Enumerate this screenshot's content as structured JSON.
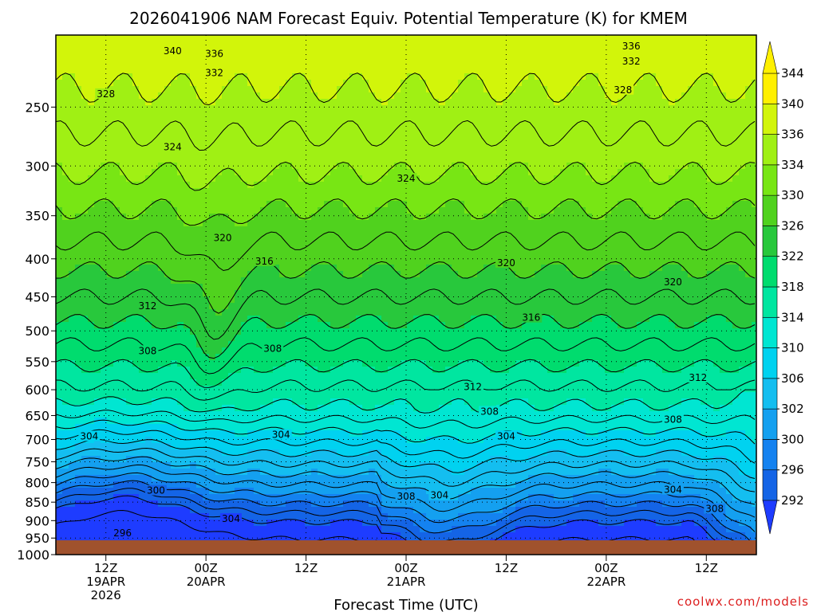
{
  "title": "2026041906 NAM Forecast Equiv. Potential Temperature (K) for KMEM",
  "credit": "coolwx.com/models",
  "chart_data": {
    "type": "heatmap",
    "title": "2026041906 NAM Forecast Equiv. Potential Temperature (K) for KMEM",
    "xlabel": "Forecast Time (UTC)",
    "ylabel": "",
    "yaxis": {
      "scale": "log",
      "direction": "pressure decreasing upward",
      "range": [
        1000,
        200
      ],
      "ticks": [
        250,
        300,
        350,
        400,
        450,
        500,
        550,
        600,
        650,
        700,
        750,
        800,
        850,
        900,
        950,
        1000
      ]
    },
    "xaxis": {
      "range_hours": [
        6,
        90
      ],
      "ticks": [
        {
          "hour": 12,
          "label": [
            "12Z",
            "19APR",
            "2026"
          ]
        },
        {
          "hour": 24,
          "label": [
            "00Z",
            "20APR"
          ]
        },
        {
          "hour": 36,
          "label": [
            "12Z"
          ]
        },
        {
          "hour": 48,
          "label": [
            "00Z",
            "21APR"
          ]
        },
        {
          "hour": 60,
          "label": [
            "12Z"
          ]
        },
        {
          "hour": 72,
          "label": [
            "00Z",
            "22APR"
          ]
        },
        {
          "hour": 84,
          "label": [
            "12Z"
          ]
        }
      ]
    },
    "grid": true,
    "colorbar": {
      "levels": [
        292,
        296,
        300,
        302,
        306,
        310,
        314,
        318,
        322,
        326,
        330,
        334,
        336,
        340,
        344
      ],
      "colors": [
        "#1e3cff",
        "#1464e6",
        "#1482f0",
        "#14a0f0",
        "#14bef0",
        "#00d2f0",
        "#00e6d2",
        "#00e6a0",
        "#00dc6e",
        "#28c83c",
        "#50d21e",
        "#78e614",
        "#a0f014",
        "#d2f50a",
        "#fff000"
      ],
      "range": [
        290,
        346
      ],
      "position": "right"
    },
    "contour_labels": [
      {
        "value": 340,
        "hour": 20,
        "p": 210
      },
      {
        "value": 336,
        "hour": 25,
        "p": 212
      },
      {
        "value": 336,
        "hour": 75,
        "p": 207
      },
      {
        "value": 332,
        "hour": 25,
        "p": 225
      },
      {
        "value": 332,
        "hour": 75,
        "p": 217
      },
      {
        "value": 328,
        "hour": 12,
        "p": 240
      },
      {
        "value": 328,
        "hour": 74,
        "p": 237
      },
      {
        "value": 324,
        "hour": 20,
        "p": 283
      },
      {
        "value": 324,
        "hour": 48,
        "p": 312
      },
      {
        "value": 320,
        "hour": 26,
        "p": 375
      },
      {
        "value": 320,
        "hour": 60,
        "p": 405
      },
      {
        "value": 320,
        "hour": 80,
        "p": 430
      },
      {
        "value": 316,
        "hour": 31,
        "p": 403
      },
      {
        "value": 316,
        "hour": 63,
        "p": 480
      },
      {
        "value": 312,
        "hour": 17,
        "p": 463
      },
      {
        "value": 312,
        "hour": 56,
        "p": 595
      },
      {
        "value": 312,
        "hour": 83,
        "p": 578
      },
      {
        "value": 308,
        "hour": 17,
        "p": 532
      },
      {
        "value": 308,
        "hour": 32,
        "p": 528
      },
      {
        "value": 308,
        "hour": 58,
        "p": 642
      },
      {
        "value": 308,
        "hour": 80,
        "p": 658
      },
      {
        "value": 308,
        "hour": 85,
        "p": 868
      },
      {
        "value": 308,
        "hour": 48,
        "p": 835
      },
      {
        "value": 304,
        "hour": 10,
        "p": 693
      },
      {
        "value": 304,
        "hour": 33,
        "p": 690
      },
      {
        "value": 304,
        "hour": 60,
        "p": 693
      },
      {
        "value": 304,
        "hour": 52,
        "p": 832
      },
      {
        "value": 304,
        "hour": 80,
        "p": 818
      },
      {
        "value": 304,
        "hour": 27,
        "p": 895
      },
      {
        "value": 300,
        "hour": 18,
        "p": 820
      },
      {
        "value": 296,
        "hour": 14,
        "p": 935
      }
    ]
  }
}
